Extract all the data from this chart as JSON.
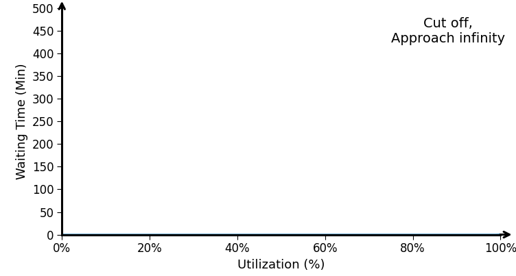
{
  "xlabel": "Utilization (%)",
  "ylabel": "Waiting Time (Min)",
  "annotation_text": "Cut off,\nApproach infinity",
  "line_color": "#5BA3D0",
  "line_width": 2.0,
  "xlim": [
    0,
    1.0
  ],
  "ylim": [
    0,
    500
  ],
  "yticks": [
    0,
    50,
    100,
    150,
    200,
    250,
    300,
    350,
    400,
    450,
    500
  ],
  "xticks": [
    0,
    0.2,
    0.4,
    0.6,
    0.8,
    1.0
  ],
  "xlabel_fontsize": 13,
  "ylabel_fontsize": 13,
  "annotation_fontsize": 14,
  "tick_fontsize": 12,
  "background_color": "#ffffff",
  "spine_linewidth": 2.2,
  "scale": 0.002
}
